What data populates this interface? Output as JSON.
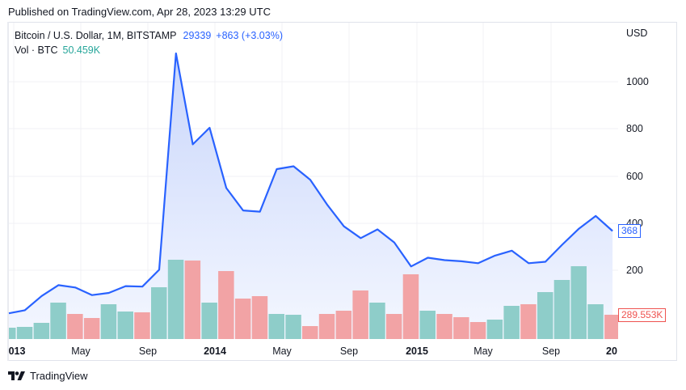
{
  "header": {
    "published": "Published on TradingView.com, Apr 28, 2023 13:29 UTC"
  },
  "legend": {
    "symbol": "Bitcoin / U.S. Dollar, 1M, BITSTAMP",
    "last": "29339",
    "change": "+863 (+3.03%)",
    "vol_label": "Vol · BTC",
    "vol_value": "50.459K"
  },
  "axis": {
    "currency": "USD",
    "y_ticks": [
      "1000",
      "800",
      "600",
      "400",
      "200"
    ],
    "x_ticks": [
      {
        "label": "013",
        "bold": true
      },
      {
        "label": "May",
        "bold": false
      },
      {
        "label": "Sep",
        "bold": false
      },
      {
        "label": "2014",
        "bold": true
      },
      {
        "label": "May",
        "bold": false
      },
      {
        "label": "Sep",
        "bold": false
      },
      {
        "label": "2015",
        "bold": true
      },
      {
        "label": "May",
        "bold": false
      },
      {
        "label": "Sep",
        "bold": false
      },
      {
        "label": "20",
        "bold": true
      }
    ]
  },
  "tags": {
    "price": "368",
    "volume": "289.553K"
  },
  "footer": {
    "brand": "TradingView"
  },
  "colors": {
    "line": "#2962ff",
    "area_top": "#c9d6fb",
    "area_bottom": "#f4f7ff",
    "vol_up": "#8ecdc9",
    "vol_down": "#f2a3a5",
    "grid": "#f0f1f4"
  },
  "chart_data": {
    "type": "line",
    "title": "Bitcoin / U.S. Dollar, 1M, BITSTAMP",
    "xlabel": "",
    "ylabel": "USD",
    "ylim": [
      0,
      1150
    ],
    "grid": true,
    "x": [
      "2013-01",
      "2013-02",
      "2013-03",
      "2013-04",
      "2013-05",
      "2013-06",
      "2013-07",
      "2013-08",
      "2013-09",
      "2013-10",
      "2013-11",
      "2013-12",
      "2014-01",
      "2014-02",
      "2014-03",
      "2014-04",
      "2014-05",
      "2014-06",
      "2014-07",
      "2014-08",
      "2014-09",
      "2014-10",
      "2014-11",
      "2014-12",
      "2015-01",
      "2015-02",
      "2015-03",
      "2015-04",
      "2015-05",
      "2015-06",
      "2015-07",
      "2015-08",
      "2015-09",
      "2015-10",
      "2015-11",
      "2015-12",
      "2016-01"
    ],
    "series": [
      {
        "name": "Close (USD)",
        "type": "line",
        "values": [
          20,
          33,
          93,
          139,
          129,
          97,
          106,
          135,
          133,
          204,
          1120,
          735,
          805,
          550,
          455,
          450,
          630,
          642,
          585,
          480,
          388,
          338,
          375,
          320,
          218,
          255,
          245,
          240,
          232,
          264,
          285,
          232,
          238,
          310,
          378,
          432,
          368
        ]
      },
      {
        "name": "Vol · BTC (relative)",
        "type": "bar",
        "values": [
          14,
          15,
          20,
          45,
          31,
          26,
          43,
          34,
          33,
          64,
          98,
          97,
          45,
          84,
          50,
          53,
          31,
          30,
          16,
          31,
          35,
          60,
          45,
          31,
          80,
          35,
          31,
          27,
          21,
          24,
          41,
          43,
          58,
          73,
          90,
          43,
          30
        ],
        "direction": [
          "up",
          "up",
          "up",
          "up",
          "down",
          "down",
          "up",
          "up",
          "down",
          "up",
          "up",
          "down",
          "up",
          "down",
          "down",
          "down",
          "up",
          "up",
          "down",
          "down",
          "down",
          "down",
          "up",
          "down",
          "down",
          "up",
          "down",
          "down",
          "down",
          "up",
          "up",
          "down",
          "up",
          "up",
          "up",
          "up",
          "down"
        ]
      }
    ],
    "last_price": 368,
    "last_volume": "289.553K"
  }
}
